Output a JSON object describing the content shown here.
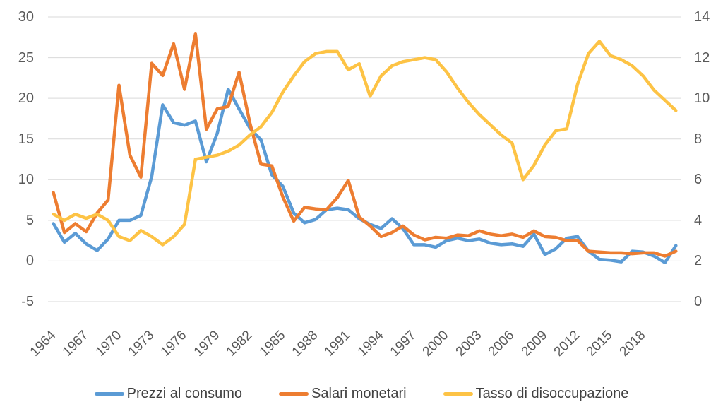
{
  "chart_data": {
    "type": "line",
    "title": "",
    "x": [
      1964,
      1965,
      1966,
      1967,
      1968,
      1969,
      1970,
      1971,
      1972,
      1973,
      1974,
      1975,
      1976,
      1977,
      1978,
      1979,
      1980,
      1981,
      1982,
      1983,
      1984,
      1985,
      1986,
      1987,
      1988,
      1989,
      1990,
      1991,
      1992,
      1993,
      1994,
      1995,
      1996,
      1997,
      1998,
      1999,
      2000,
      2001,
      2002,
      2003,
      2004,
      2005,
      2006,
      2007,
      2008,
      2009,
      2010,
      2011,
      2012,
      2013,
      2014,
      2015,
      2016,
      2017,
      2018,
      2019,
      2020,
      2021
    ],
    "x_tick_labels": [
      "1964",
      "1967",
      "1970",
      "1973",
      "1976",
      "1979",
      "1982",
      "1985",
      "1988",
      "1991",
      "1994",
      "1997",
      "2000",
      "2003",
      "2006",
      "2009",
      "2012",
      "2015",
      "2018"
    ],
    "x_tick_step": 3,
    "series": [
      {
        "name": "Prezzi al consumo",
        "axis": "left",
        "color": "#5B9BD5",
        "values": [
          4.6,
          2.3,
          3.4,
          2.1,
          1.3,
          2.7,
          5.0,
          5.0,
          5.6,
          10.4,
          19.2,
          17.0,
          16.7,
          17.2,
          12.2,
          15.7,
          21.1,
          18.7,
          16.3,
          14.9,
          10.6,
          9.2,
          5.9,
          4.7,
          5.1,
          6.3,
          6.5,
          6.3,
          5.2,
          4.5,
          4.0,
          5.2,
          4.0,
          2.0,
          2.0,
          1.7,
          2.5,
          2.8,
          2.5,
          2.7,
          2.2,
          2.0,
          2.1,
          1.8,
          3.3,
          0.8,
          1.5,
          2.8,
          3.0,
          1.2,
          0.2,
          0.1,
          -0.1,
          1.2,
          1.1,
          0.6,
          -0.2,
          1.9
        ]
      },
      {
        "name": "Salari monetari",
        "axis": "left",
        "color": "#ED7D31",
        "values": [
          8.4,
          3.5,
          4.6,
          3.6,
          5.9,
          7.5,
          21.6,
          13.0,
          10.3,
          24.3,
          22.8,
          26.7,
          21.1,
          27.9,
          16.2,
          18.7,
          19.0,
          23.2,
          16.9,
          11.9,
          11.7,
          7.9,
          4.9,
          6.6,
          6.4,
          6.3,
          7.8,
          9.9,
          5.4,
          4.3,
          3.0,
          3.5,
          4.3,
          3.2,
          2.6,
          2.9,
          2.8,
          3.2,
          3.1,
          3.7,
          3.3,
          3.1,
          3.3,
          2.9,
          3.7,
          3.0,
          2.9,
          2.5,
          2.5,
          1.2,
          1.1,
          1.0,
          1.0,
          0.9,
          1.0,
          1.0,
          0.6,
          1.2
        ]
      },
      {
        "name": "Tasso di disoccupazione",
        "axis": "right",
        "color": "#FDC345",
        "values": [
          4.3,
          4.0,
          4.3,
          4.1,
          4.3,
          4.0,
          3.2,
          3.0,
          3.5,
          3.2,
          2.8,
          3.2,
          3.8,
          7.0,
          7.1,
          7.2,
          7.4,
          7.7,
          8.2,
          8.6,
          9.3,
          10.3,
          11.1,
          11.8,
          12.2,
          12.3,
          12.3,
          11.4,
          11.7,
          10.1,
          11.1,
          11.6,
          11.8,
          11.9,
          12.0,
          11.9,
          11.3,
          10.5,
          9.8,
          9.2,
          8.7,
          8.2,
          7.8,
          6.0,
          6.7,
          7.7,
          8.4,
          8.5,
          10.7,
          12.2,
          12.8,
          12.1,
          11.9,
          11.6,
          11.1,
          10.4,
          9.9,
          9.4
        ]
      }
    ],
    "axes": {
      "left": {
        "ticks": [
          30,
          25,
          20,
          15,
          10,
          5,
          0,
          -5
        ],
        "min": -5,
        "max": 30
      },
      "right": {
        "ticks": [
          14,
          12,
          10,
          8,
          6,
          4,
          2,
          0
        ],
        "min": 0,
        "max": 14
      }
    },
    "grid": true,
    "legend_position": "bottom"
  },
  "style": {
    "grid_color": "#D9D9D9",
    "axis_text_color": "#595959",
    "legend_text_color": "#404040",
    "background": "#FFFFFF",
    "line_width": 4.5
  }
}
